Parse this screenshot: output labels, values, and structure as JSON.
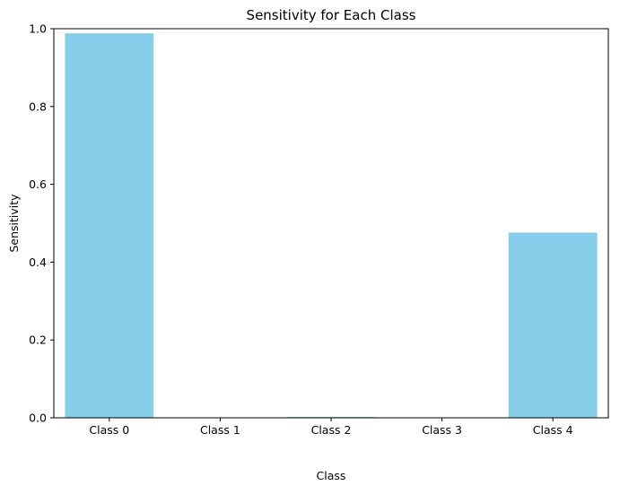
{
  "chart_data": {
    "type": "bar",
    "title": "Sensitivity for Each Class",
    "xlabel": "Class",
    "ylabel": "Sensitivity",
    "categories": [
      "Class 0",
      "Class 1",
      "Class 2",
      "Class 3",
      "Class 4"
    ],
    "values": [
      0.988,
      0.0,
      0.002,
      0.0,
      0.476
    ],
    "ylim": [
      0,
      1
    ],
    "yticks": [
      0.0,
      0.2,
      0.4,
      0.6,
      0.8,
      1.0
    ],
    "ytick_labels": [
      "0.0",
      "0.2",
      "0.4",
      "0.6",
      "0.8",
      "1.0"
    ],
    "grid": false,
    "colors": {
      "bar": "#87ceeb",
      "axes": "#000000",
      "background": "#ffffff"
    }
  }
}
